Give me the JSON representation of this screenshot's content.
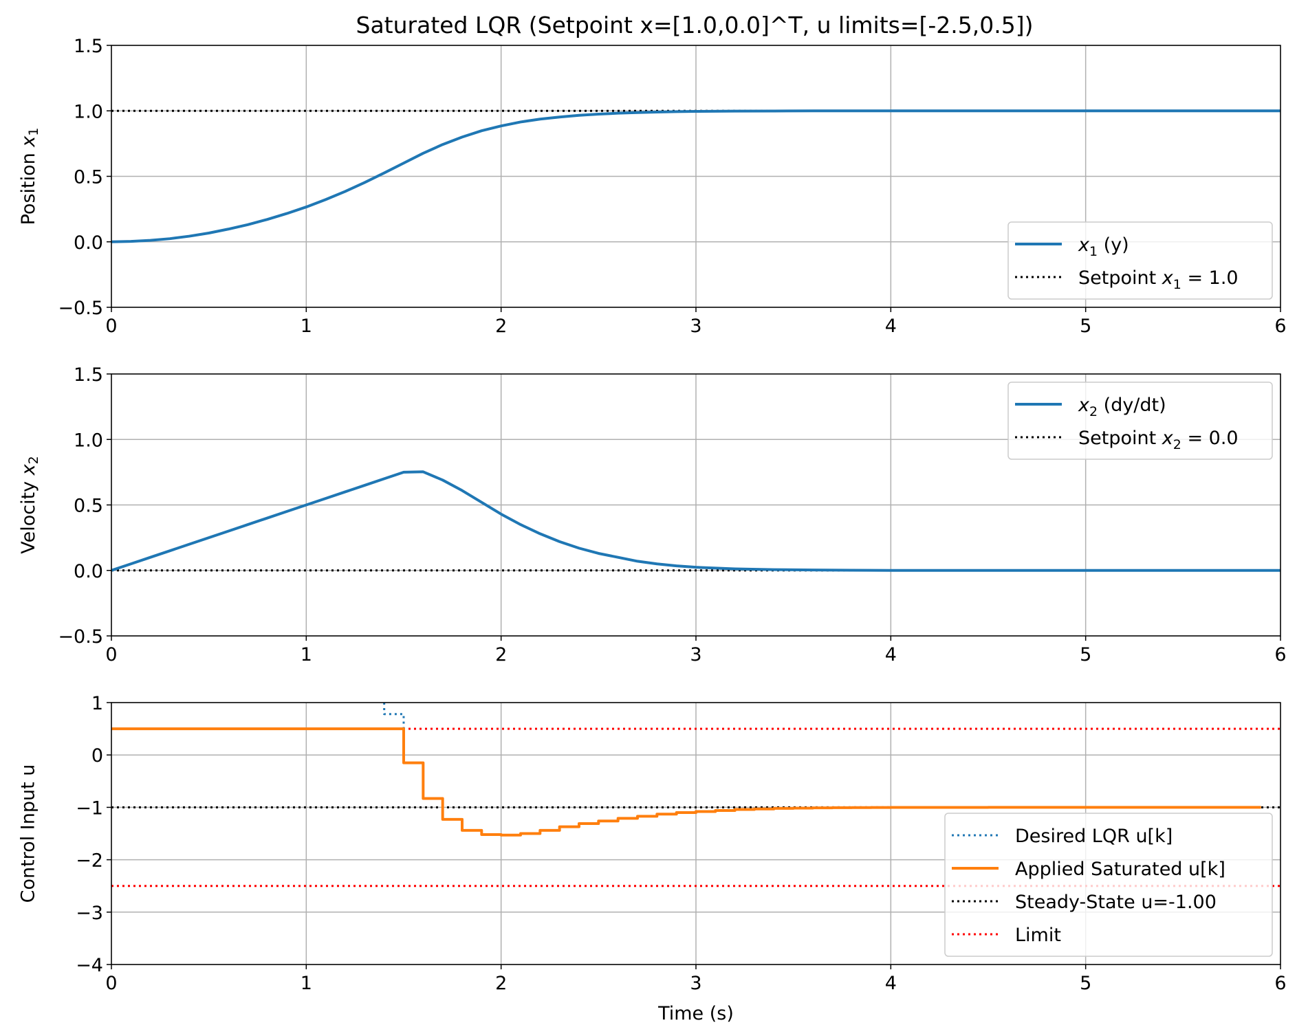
{
  "figure": {
    "title": "Saturated LQR (Setpoint x=[1.0,0.0]^T, u limits=[-2.5,0.5])"
  },
  "colors": {
    "state": "#1f77b4",
    "applied": "#ff7f0e",
    "setpoint": "#000000",
    "limit": "#ff0000",
    "grid": "#b0b0b0"
  },
  "chart_data": [
    {
      "type": "line",
      "ylabel": "Position x1",
      "xlabel": "",
      "xlim": [
        0,
        6
      ],
      "ylim": [
        -0.5,
        1.5
      ],
      "xticks": [
        "0",
        "1",
        "2",
        "3",
        "4",
        "5",
        "6"
      ],
      "yticks": [
        "1.5",
        "1.0",
        "0.5",
        "0.0",
        "−0.5"
      ],
      "grid": true,
      "legend_position": "lower right",
      "series": [
        {
          "name": "x1 (y)",
          "style": "solid",
          "x": [
            0,
            0.1,
            0.2,
            0.3,
            0.4,
            0.5,
            0.6,
            0.7,
            0.8,
            0.9,
            1.0,
            1.1,
            1.2,
            1.3,
            1.4,
            1.5,
            1.6,
            1.7,
            1.8,
            1.9,
            2.0,
            2.1,
            2.2,
            2.3,
            2.4,
            2.5,
            2.6,
            2.7,
            2.8,
            2.9,
            3.0,
            3.2,
            3.4,
            3.6,
            3.8,
            4.0,
            4.5,
            5.0,
            5.5,
            6.0
          ],
          "y": [
            0.0,
            0.003,
            0.011,
            0.024,
            0.043,
            0.067,
            0.097,
            0.131,
            0.171,
            0.216,
            0.266,
            0.323,
            0.385,
            0.453,
            0.526,
            0.601,
            0.676,
            0.743,
            0.8,
            0.848,
            0.885,
            0.915,
            0.937,
            0.953,
            0.966,
            0.975,
            0.982,
            0.987,
            0.991,
            0.994,
            0.996,
            0.998,
            0.999,
            1.0,
            1.0,
            1.0,
            1.0,
            1.0,
            1.0,
            1.0
          ]
        },
        {
          "name": "Setpoint x1 = 1.0",
          "style": "dotted",
          "x": [
            0,
            6
          ],
          "y": [
            1.0,
            1.0
          ]
        }
      ]
    },
    {
      "type": "line",
      "ylabel": "Velocity x2",
      "xlabel": "",
      "xlim": [
        0,
        6
      ],
      "ylim": [
        -0.5,
        1.5
      ],
      "xticks": [
        "0",
        "1",
        "2",
        "3",
        "4",
        "5",
        "6"
      ],
      "yticks": [
        "1.5",
        "1.0",
        "0.5",
        "0.0",
        "−0.5"
      ],
      "grid": true,
      "legend_position": "upper right",
      "series": [
        {
          "name": "x2 (dy/dt)",
          "style": "solid",
          "x": [
            0,
            0.1,
            0.2,
            0.3,
            0.4,
            0.5,
            0.6,
            0.7,
            0.8,
            0.9,
            1.0,
            1.1,
            1.2,
            1.3,
            1.4,
            1.5,
            1.6,
            1.7,
            1.8,
            1.9,
            2.0,
            2.1,
            2.2,
            2.3,
            2.4,
            2.5,
            2.6,
            2.7,
            2.8,
            2.9,
            3.0,
            3.2,
            3.4,
            3.6,
            3.8,
            4.0,
            4.5,
            5.0,
            5.5,
            6.0
          ],
          "y": [
            0.0,
            0.05,
            0.1,
            0.15,
            0.2,
            0.25,
            0.3,
            0.35,
            0.4,
            0.45,
            0.5,
            0.55,
            0.6,
            0.65,
            0.7,
            0.75,
            0.753,
            0.69,
            0.61,
            0.52,
            0.43,
            0.35,
            0.28,
            0.22,
            0.17,
            0.13,
            0.1,
            0.07,
            0.05,
            0.035,
            0.024,
            0.012,
            0.006,
            0.003,
            0.001,
            0.0,
            0.0,
            0.0,
            0.0,
            0.0
          ]
        },
        {
          "name": "Setpoint x2 = 0.0",
          "style": "dotted",
          "x": [
            0,
            6
          ],
          "y": [
            0.0,
            0.0
          ]
        }
      ]
    },
    {
      "type": "line",
      "ylabel": "Control Input u",
      "xlabel": "Time (s)",
      "xlim": [
        0,
        6
      ],
      "ylim": [
        -4,
        1
      ],
      "xticks": [
        "0",
        "1",
        "2",
        "3",
        "4",
        "5",
        "6"
      ],
      "yticks": [
        "1",
        "0",
        "−1",
        "−2",
        "−3",
        "−4"
      ],
      "grid": true,
      "legend_position": "lower right",
      "series": [
        {
          "name": "Desired LQR u[k]",
          "style": "dotted-step",
          "x": [
            1.4,
            1.4,
            1.5,
            1.5
          ],
          "y": [
            1.0,
            0.78,
            0.78,
            0.5
          ]
        },
        {
          "name": "Applied Saturated u[k]",
          "style": "step",
          "x": [
            0,
            1.5,
            1.6,
            1.7,
            1.8,
            1.9,
            2.0,
            2.1,
            2.2,
            2.3,
            2.4,
            2.5,
            2.6,
            2.7,
            2.8,
            2.9,
            3.0,
            3.1,
            3.2,
            3.3,
            3.4,
            3.5,
            3.6,
            3.7,
            3.8,
            3.9,
            4.0,
            4.5,
            5.0,
            5.5,
            5.9
          ],
          "y": [
            0.5,
            -0.15,
            -0.83,
            -1.23,
            -1.44,
            -1.52,
            -1.53,
            -1.5,
            -1.44,
            -1.37,
            -1.31,
            -1.26,
            -1.21,
            -1.17,
            -1.13,
            -1.1,
            -1.08,
            -1.06,
            -1.04,
            -1.03,
            -1.02,
            -1.015,
            -1.01,
            -1.007,
            -1.005,
            -1.003,
            -1.002,
            -1.0,
            -1.0,
            -1.0,
            -1.0
          ]
        },
        {
          "name": "Steady-State u=-1.00",
          "style": "dotted",
          "x": [
            0,
            6
          ],
          "y": [
            -1.0,
            -1.0
          ]
        },
        {
          "name": "Limit",
          "style": "dotted",
          "x": [
            0,
            6
          ],
          "y": [
            0.5,
            0.5
          ]
        },
        {
          "name": "",
          "style": "dotted",
          "x": [
            0,
            6
          ],
          "y": [
            -2.5,
            -2.5
          ]
        }
      ]
    }
  ]
}
